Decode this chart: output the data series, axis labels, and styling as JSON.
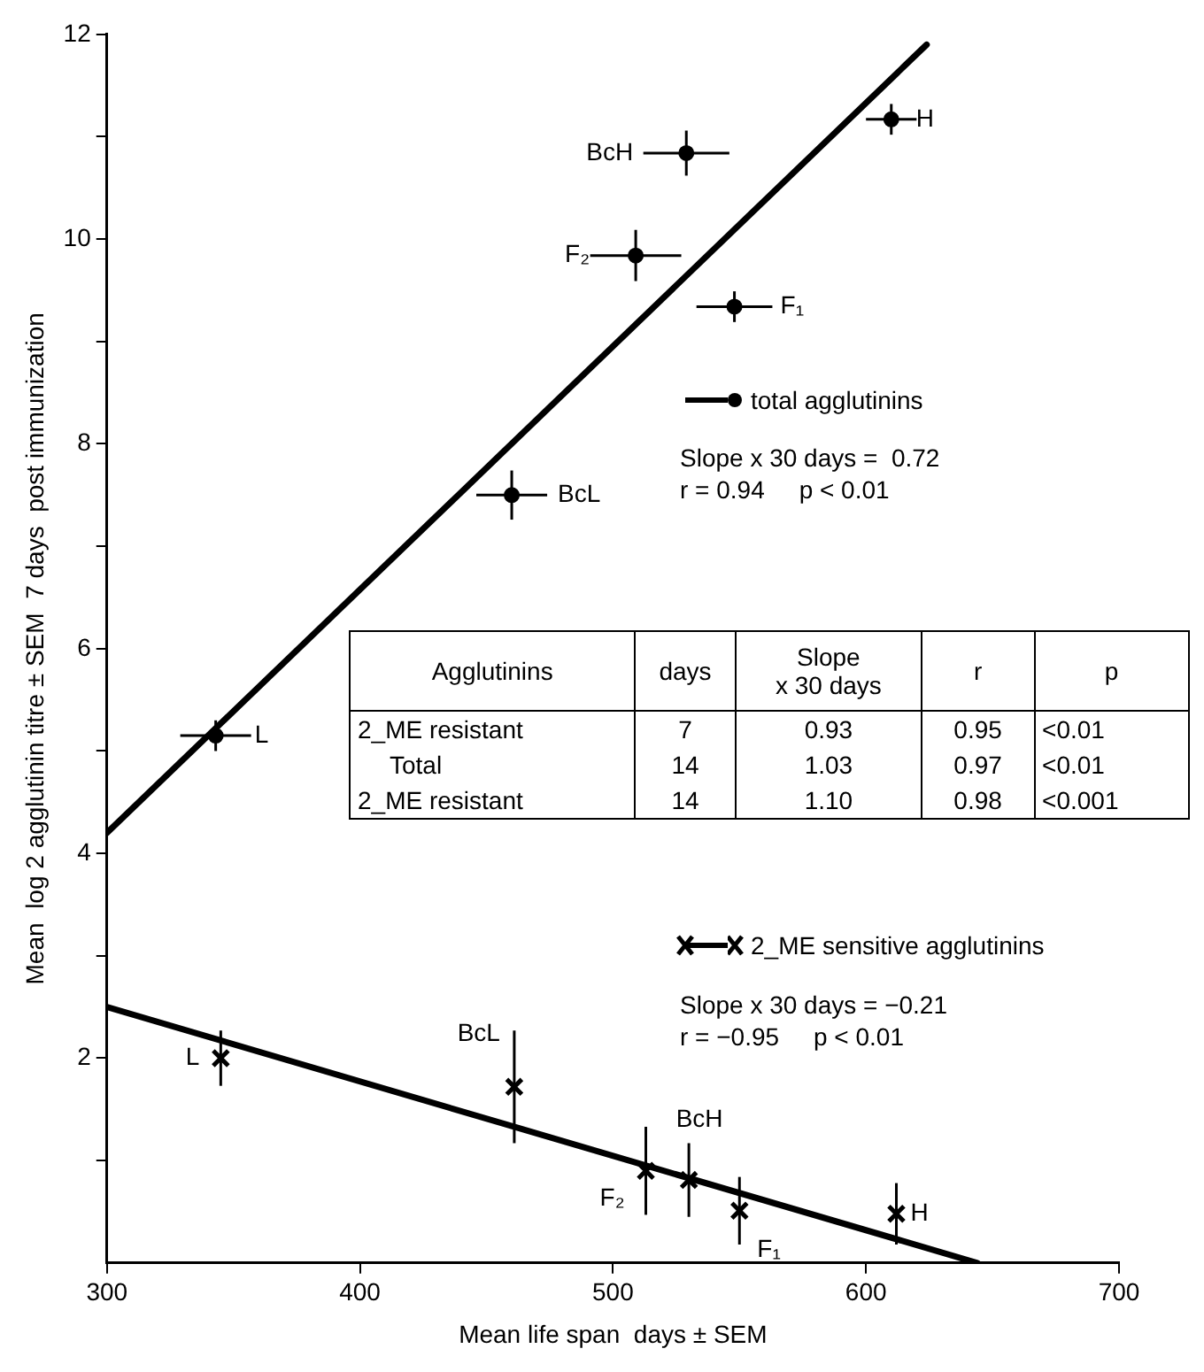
{
  "chart_data": [
    {
      "type": "scatter",
      "xlabel": "Mean life span  days ± SEM",
      "ylabel": "Mean  log 2 agglutinin titre ± SEM  7 days  post immunization",
      "xlim": [
        300,
        700
      ],
      "xticks": [
        300,
        400,
        500,
        600,
        700
      ],
      "ylim": [
        0,
        12
      ],
      "yticks": [
        {
          "value": 1,
          "label": null
        },
        2,
        {
          "value": 3,
          "label": null
        },
        4,
        {
          "value": 5,
          "label": null
        },
        6,
        {
          "value": 7,
          "label": null
        },
        8,
        {
          "value": 9,
          "label": null
        },
        10,
        {
          "value": 11,
          "label": null
        },
        12
      ],
      "grid": false,
      "legend": "right",
      "marker": "circle",
      "series": [
        {
          "name": "total agglutinins",
          "color": "#000000",
          "x": [
            343,
            460,
            509,
            529,
            548,
            610
          ],
          "values": [
            5.15,
            7.5,
            9.84,
            10.84,
            9.34,
            11.17
          ],
          "errors": [
            0.15,
            0.24,
            0.25,
            0.22,
            0.15,
            0.15
          ],
          "xerrors": [
            14,
            14,
            18,
            17,
            15,
            10
          ]
        },
        {
          "name": "2_ME sensitive agglutinins",
          "color": "#000000",
          "marker": "cross",
          "x": [
            345,
            461,
            513,
            530,
            550,
            612
          ],
          "values": [
            2.0,
            1.72,
            0.9,
            0.81,
            0.51,
            0.48
          ],
          "errors": [
            0.27,
            0.55,
            0.43,
            0.36,
            0.33,
            0.3
          ]
        },
        {
          "type": "line",
          "color": "#000000",
          "marker": "none",
          "x": [
            300,
            624
          ],
          "values": [
            4.2,
            11.9
          ]
        },
        {
          "type": "line",
          "color": "#000000",
          "marker": "none",
          "x": [
            300,
            644
          ],
          "values": [
            2.5,
            0
          ]
        }
      ],
      "annotations": [
        {
          "text": "H",
          "x": 610,
          "y": 11.17
        },
        {
          "text": "BcH",
          "x": 529,
          "y": 10.84
        },
        {
          "text": "F₂",
          "x": 509,
          "y": 9.84
        },
        {
          "text": "F₁",
          "x": 548,
          "y": 9.34
        },
        {
          "text": "BcL",
          "x": 460,
          "y": 7.5
        },
        {
          "text": "L",
          "x": 343,
          "y": 5.15
        },
        {
          "text": "L",
          "x": 345,
          "y": 2.0
        },
        {
          "text": "BcL",
          "x": 461,
          "y": 1.72
        },
        {
          "text": "F₂",
          "x": 513,
          "y": 0.9
        },
        {
          "text": "BcH",
          "x": 530,
          "y": 0.81
        },
        {
          "text": "F₁",
          "x": 550,
          "y": 0.51
        },
        {
          "text": "H",
          "x": 612,
          "y": 0.48
        },
        "Slope x 30 days =  0.72",
        "r = 0.94     p < 0.01",
        "Slope x 30 days = −0.21",
        "r = −0.95     p < 0.01"
      ]
    },
    {
      "type": "other",
      "categories": [
        "Agglutinins",
        "days",
        "Slope\nx 30 days",
        "r",
        "p"
      ],
      "cell_labels": [
        [
          "2_ME resistant",
          "7",
          "0.93",
          "0.95",
          "<0.01"
        ],
        [
          "Total",
          "14",
          "1.03",
          "0.97",
          "<0.01"
        ],
        [
          "2_ME resistant",
          "14",
          "1.10",
          "0.98",
          "<0.001"
        ]
      ]
    }
  ]
}
